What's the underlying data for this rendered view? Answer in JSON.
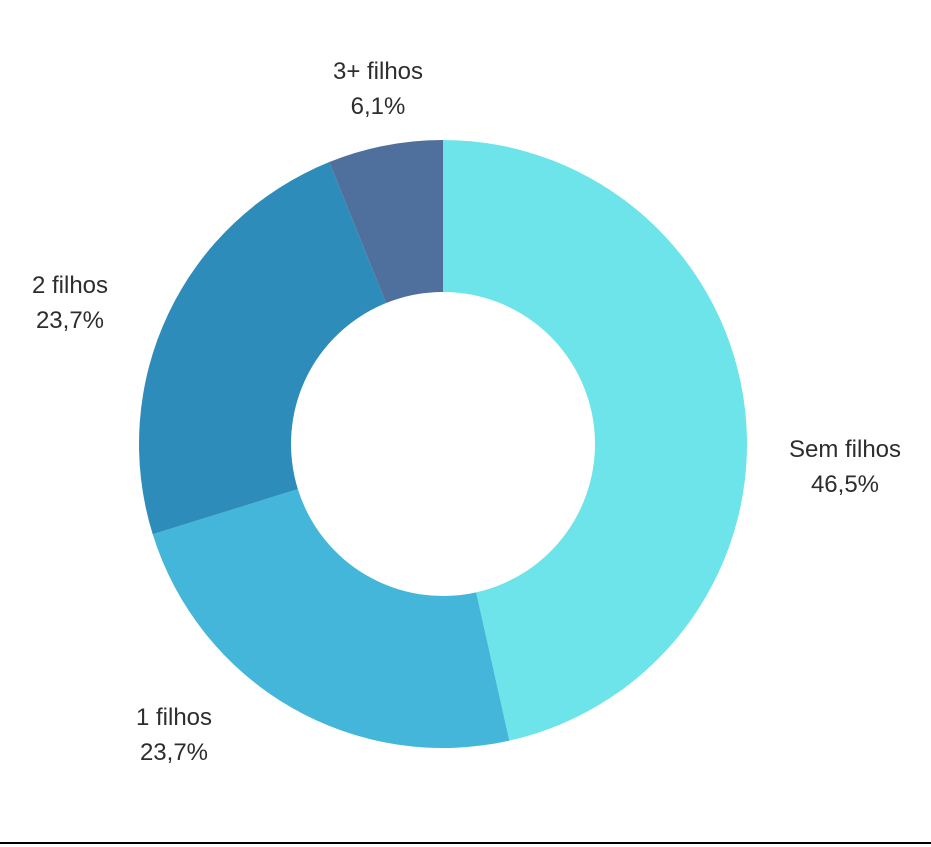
{
  "chart_data": {
    "type": "pie",
    "subtype": "donut",
    "title": "",
    "unit": "%",
    "decimal_separator": ",",
    "direction": "clockwise",
    "start_angle_deg": 0,
    "inner_radius_ratio": 0.5,
    "background_color": "#ffffff",
    "label_text_color": "#2d2d2d",
    "categories": [
      "Sem filhos",
      "1 filhos",
      "2 filhos",
      "3+ filhos"
    ],
    "values": [
      46.5,
      23.7,
      23.7,
      6.1
    ],
    "series": [
      {
        "label": "Sem filhos",
        "value": 46.5,
        "display": "46,5%",
        "color": "#6CE4E9"
      },
      {
        "label": "1 filhos",
        "value": 23.7,
        "display": "23,7%",
        "color": "#44B6D9"
      },
      {
        "label": "2 filhos",
        "value": 23.7,
        "display": "23,7%",
        "color": "#2E8CBB"
      },
      {
        "label": "3+ filhos",
        "value": 6.1,
        "display": "6,1%",
        "color": "#4F6F9C"
      }
    ],
    "legend": "none",
    "labels_position": "outside"
  },
  "footer": {
    "divider_color": "#000000"
  }
}
